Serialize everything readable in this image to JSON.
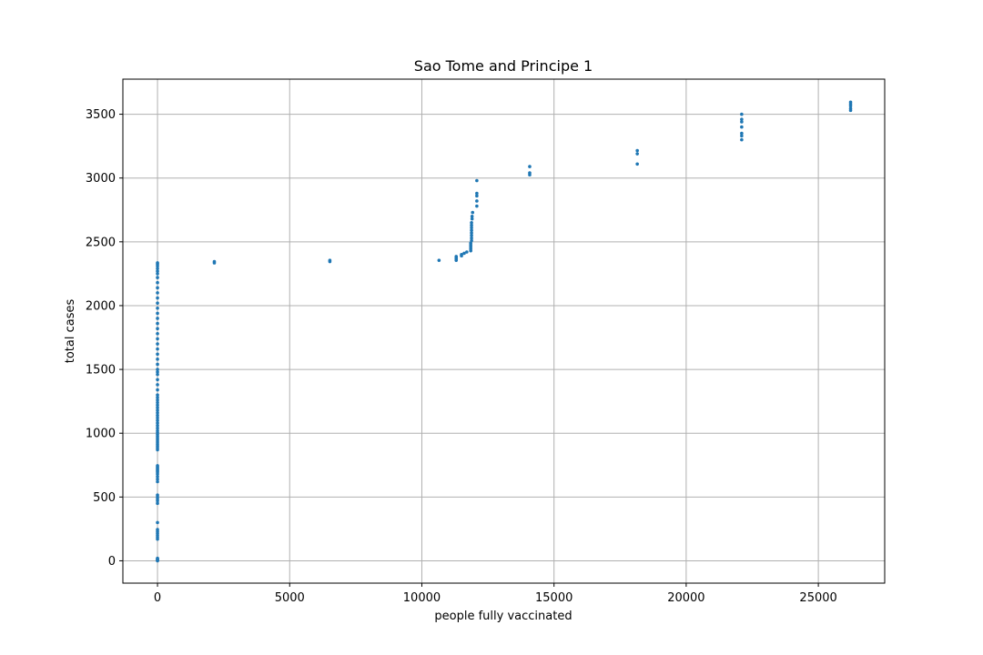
{
  "chart_data": {
    "type": "scatter",
    "title": "Sao Tome and Principe 1",
    "xlabel": "people fully vaccinated",
    "ylabel": "total cases",
    "xlim": [
      -1310,
      27510
    ],
    "ylim": [
      -175,
      3775
    ],
    "xticks": [
      0,
      5000,
      10000,
      15000,
      20000,
      25000
    ],
    "yticks": [
      0,
      500,
      1000,
      1500,
      2000,
      2500,
      3000,
      3500
    ],
    "grid": true,
    "marker_color": "#1f77b4",
    "series": [
      {
        "points": [
          [
            0,
            0
          ],
          [
            0,
            5
          ],
          [
            0,
            10
          ],
          [
            0,
            15
          ],
          [
            0,
            20
          ],
          [
            0,
            170
          ],
          [
            0,
            185
          ],
          [
            0,
            200
          ],
          [
            0,
            215
          ],
          [
            0,
            230
          ],
          [
            0,
            245
          ],
          [
            0,
            300
          ],
          [
            0,
            450
          ],
          [
            0,
            470
          ],
          [
            0,
            485
          ],
          [
            0,
            500
          ],
          [
            0,
            515
          ],
          [
            0,
            620
          ],
          [
            0,
            640
          ],
          [
            0,
            660
          ],
          [
            0,
            680
          ],
          [
            0,
            695
          ],
          [
            0,
            705
          ],
          [
            0,
            715
          ],
          [
            0,
            725
          ],
          [
            0,
            735
          ],
          [
            0,
            745
          ],
          [
            0,
            870
          ],
          [
            0,
            885
          ],
          [
            0,
            900
          ],
          [
            0,
            915
          ],
          [
            0,
            930
          ],
          [
            0,
            945
          ],
          [
            0,
            960
          ],
          [
            0,
            975
          ],
          [
            0,
            990
          ],
          [
            0,
            1005
          ],
          [
            0,
            1020
          ],
          [
            0,
            1040
          ],
          [
            0,
            1060
          ],
          [
            0,
            1080
          ],
          [
            0,
            1100
          ],
          [
            0,
            1120
          ],
          [
            0,
            1140
          ],
          [
            0,
            1160
          ],
          [
            0,
            1180
          ],
          [
            0,
            1200
          ],
          [
            0,
            1220
          ],
          [
            0,
            1240
          ],
          [
            0,
            1260
          ],
          [
            0,
            1280
          ],
          [
            0,
            1300
          ],
          [
            0,
            1340
          ],
          [
            0,
            1380
          ],
          [
            0,
            1420
          ],
          [
            0,
            1460
          ],
          [
            0,
            1480
          ],
          [
            0,
            1500
          ],
          [
            0,
            1540
          ],
          [
            0,
            1580
          ],
          [
            0,
            1620
          ],
          [
            0,
            1660
          ],
          [
            0,
            1700
          ],
          [
            0,
            1740
          ],
          [
            0,
            1780
          ],
          [
            0,
            1820
          ],
          [
            0,
            1860
          ],
          [
            0,
            1900
          ],
          [
            0,
            1940
          ],
          [
            0,
            1980
          ],
          [
            0,
            2020
          ],
          [
            0,
            2060
          ],
          [
            0,
            2100
          ],
          [
            0,
            2140
          ],
          [
            0,
            2180
          ],
          [
            0,
            2220
          ],
          [
            0,
            2250
          ],
          [
            0,
            2270
          ],
          [
            0,
            2290
          ],
          [
            0,
            2310
          ],
          [
            0,
            2325
          ],
          [
            0,
            2335
          ],
          [
            2150,
            2335
          ],
          [
            2150,
            2345
          ],
          [
            6520,
            2345
          ],
          [
            6520,
            2355
          ],
          [
            10650,
            2355
          ],
          [
            11300,
            2355
          ],
          [
            11300,
            2365
          ],
          [
            11300,
            2375
          ],
          [
            11300,
            2385
          ],
          [
            11500,
            2390
          ],
          [
            11500,
            2400
          ],
          [
            11600,
            2410
          ],
          [
            11700,
            2420
          ],
          [
            11850,
            2430
          ],
          [
            11850,
            2445
          ],
          [
            11850,
            2460
          ],
          [
            11850,
            2475
          ],
          [
            11850,
            2490
          ],
          [
            11880,
            2510
          ],
          [
            11880,
            2530
          ],
          [
            11880,
            2550
          ],
          [
            11880,
            2570
          ],
          [
            11880,
            2590
          ],
          [
            11880,
            2610
          ],
          [
            11880,
            2630
          ],
          [
            11880,
            2650
          ],
          [
            11900,
            2680
          ],
          [
            11900,
            2700
          ],
          [
            11920,
            2730
          ],
          [
            12080,
            2780
          ],
          [
            12080,
            2820
          ],
          [
            12080,
            2860
          ],
          [
            12080,
            2880
          ],
          [
            12080,
            2980
          ],
          [
            14080,
            3025
          ],
          [
            14080,
            3040
          ],
          [
            14080,
            3090
          ],
          [
            18150,
            3110
          ],
          [
            18150,
            3190
          ],
          [
            18150,
            3215
          ],
          [
            22100,
            3300
          ],
          [
            22100,
            3330
          ],
          [
            22100,
            3350
          ],
          [
            22100,
            3400
          ],
          [
            22100,
            3440
          ],
          [
            22100,
            3460
          ],
          [
            22100,
            3500
          ],
          [
            26220,
            3530
          ],
          [
            26220,
            3545
          ],
          [
            26220,
            3565
          ],
          [
            26220,
            3580
          ],
          [
            26220,
            3595
          ]
        ]
      }
    ]
  }
}
